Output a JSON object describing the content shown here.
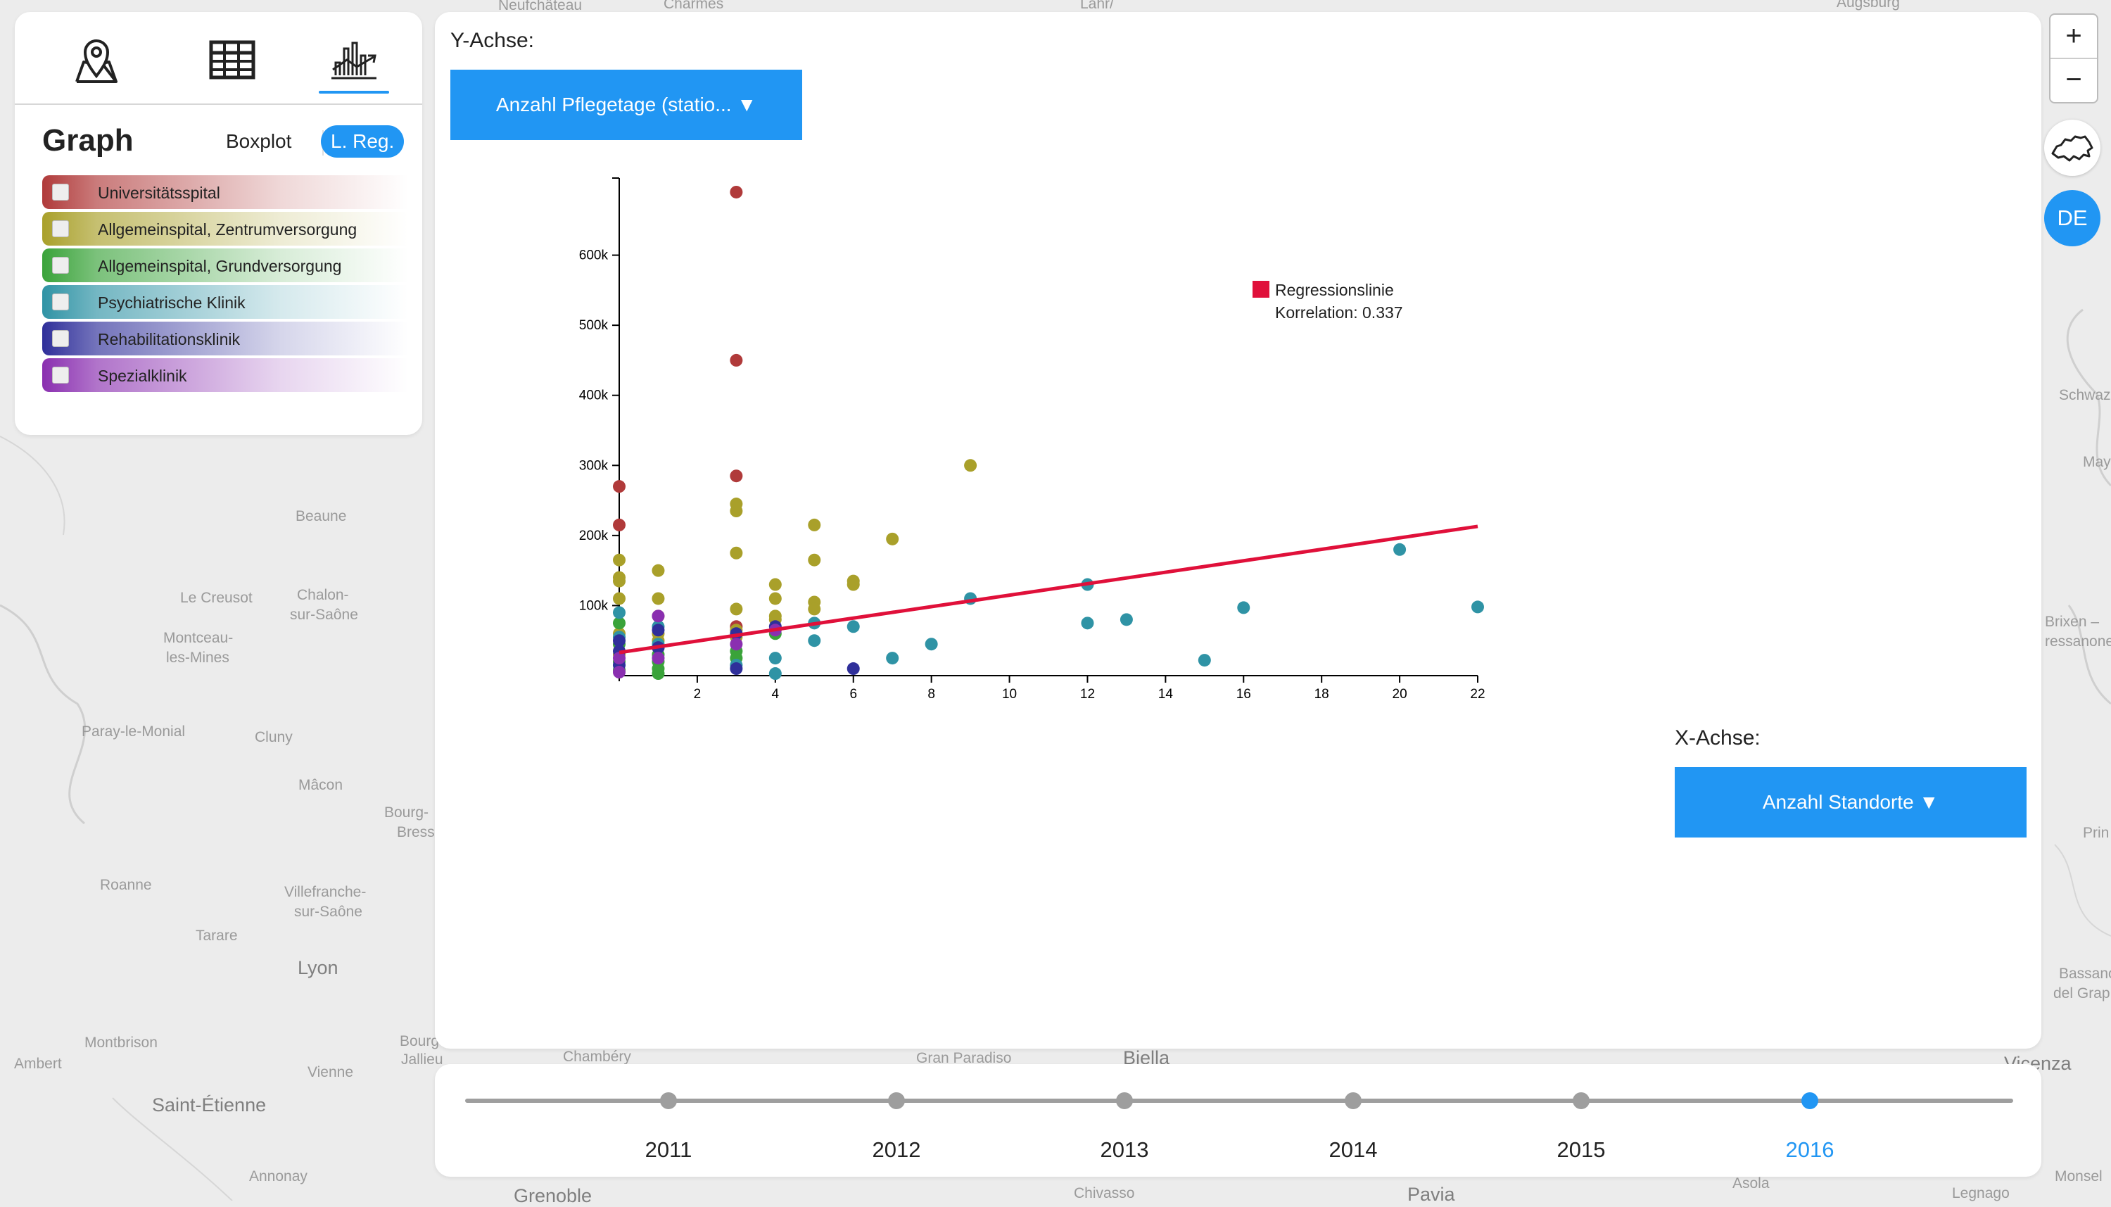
{
  "map": {
    "labels": [
      "Neufchâteau",
      "Charmes",
      "Lahr/",
      "Augsburg",
      "Beaune",
      "Le Creusot",
      "Chalon-",
      "sur-Saône",
      "Montceau-",
      "les-Mines",
      "Paray-le-Monial",
      "Cluny",
      "Mâcon",
      "Bourg-",
      "Bress",
      "Roanne",
      "Villefranche-",
      "sur-Saône",
      "Tarare",
      "Lyon",
      "Montbrison",
      "Vienne",
      "Ambert",
      "Saint-Étienne",
      "Annonay",
      "Bourg",
      "Jallieu",
      "Chambéry",
      "Gran Paradiso",
      "Biella",
      "Vicenza",
      "Chivasso",
      "Asola",
      "Legnago",
      "Pavia",
      "Grenoble",
      "Schwaz",
      "Brixen –",
      "ressanone",
      "Bassano",
      "del Grap",
      "Monsel",
      "Prin",
      "May"
    ]
  },
  "left_panel": {
    "tabs": [
      {
        "icon": "map-pin-icon"
      },
      {
        "icon": "table-icon"
      },
      {
        "icon": "chart-icon",
        "active": true
      }
    ],
    "title": "Graph",
    "mode_boxplot": "Boxplot",
    "mode_lreg": "L. Reg.",
    "legend": [
      {
        "label": "Universitätsspital",
        "color": "#b03a3a"
      },
      {
        "label": "Allgemeinspital, Zentrumversorgung",
        "color": "#a9a02a"
      },
      {
        "label": "Allgemeinspital, Grundversorgung",
        "color": "#3aa33a"
      },
      {
        "label": "Psychiatrische Klinik",
        "color": "#2f93a5"
      },
      {
        "label": "Rehabilitationsklinik",
        "color": "#2f2f9a"
      },
      {
        "label": "Spezialklinik",
        "color": "#8a2fb0"
      }
    ]
  },
  "main_panel": {
    "y_caption": "Y-Achse:",
    "y_button": "Anzahl Pflegetage (statio... ▼",
    "x_caption": "X-Achse:",
    "x_button": "Anzahl Standorte ▼"
  },
  "chart_data": {
    "type": "scatter",
    "xlim": [
      0,
      22
    ],
    "ylim": [
      0,
      700000
    ],
    "x_ticks": [
      2,
      4,
      6,
      8,
      10,
      12,
      14,
      16,
      18,
      20,
      22
    ],
    "y_ticks": [
      100000,
      200000,
      300000,
      400000,
      500000,
      600000
    ],
    "y_tick_labels": [
      "100k",
      "200k",
      "300k",
      "400k",
      "500k",
      "600k"
    ],
    "legend_label": "Regressionslinie",
    "correlation_text": "Korrelation: 0.337",
    "regression_color": "#e0103a",
    "regression": {
      "x": [
        0,
        22
      ],
      "y": [
        33000,
        213000
      ]
    },
    "series": [
      {
        "color": "#b03a3a",
        "points": [
          [
            0,
            270000
          ],
          [
            0,
            215000
          ],
          [
            3,
            690000
          ],
          [
            3,
            450000
          ],
          [
            3,
            285000
          ],
          [
            3,
            70000
          ]
        ]
      },
      {
        "color": "#a9a02a",
        "points": [
          [
            0,
            165000
          ],
          [
            0,
            140000
          ],
          [
            0,
            135000
          ],
          [
            0,
            110000
          ],
          [
            0,
            60000
          ],
          [
            0,
            30000
          ],
          [
            1,
            150000
          ],
          [
            1,
            110000
          ],
          [
            1,
            85000
          ],
          [
            1,
            60000
          ],
          [
            1,
            50000
          ],
          [
            3,
            245000
          ],
          [
            3,
            235000
          ],
          [
            3,
            175000
          ],
          [
            3,
            95000
          ],
          [
            3,
            65000
          ],
          [
            3,
            55000
          ],
          [
            4,
            130000
          ],
          [
            4,
            110000
          ],
          [
            4,
            85000
          ],
          [
            4,
            80000
          ],
          [
            5,
            215000
          ],
          [
            5,
            165000
          ],
          [
            5,
            105000
          ],
          [
            5,
            95000
          ],
          [
            6,
            135000
          ],
          [
            6,
            130000
          ],
          [
            7,
            195000
          ],
          [
            9,
            300000
          ]
        ]
      },
      {
        "color": "#3aa33a",
        "points": [
          [
            0,
            75000
          ],
          [
            0,
            45000
          ],
          [
            0,
            20000
          ],
          [
            0,
            8000
          ],
          [
            1,
            40000
          ],
          [
            1,
            30000
          ],
          [
            1,
            20000
          ],
          [
            1,
            10000
          ],
          [
            1,
            3000
          ],
          [
            3,
            35000
          ],
          [
            3,
            25000
          ],
          [
            4,
            60000
          ]
        ]
      },
      {
        "color": "#2f93a5",
        "points": [
          [
            0,
            90000
          ],
          [
            0,
            55000
          ],
          [
            1,
            70000
          ],
          [
            1,
            45000
          ],
          [
            3,
            15000
          ],
          [
            4,
            25000
          ],
          [
            4,
            3000
          ],
          [
            5,
            75000
          ],
          [
            5,
            50000
          ],
          [
            6,
            70000
          ],
          [
            7,
            25000
          ],
          [
            8,
            45000
          ],
          [
            9,
            110000
          ],
          [
            12,
            130000
          ],
          [
            12,
            75000
          ],
          [
            13,
            80000
          ],
          [
            15,
            22000
          ],
          [
            16,
            97000
          ],
          [
            20,
            180000
          ],
          [
            22,
            98000
          ]
        ]
      },
      {
        "color": "#2f2f9a",
        "points": [
          [
            0,
            50000
          ],
          [
            0,
            35000
          ],
          [
            0,
            15000
          ],
          [
            1,
            65000
          ],
          [
            1,
            40000
          ],
          [
            3,
            60000
          ],
          [
            3,
            10000
          ],
          [
            4,
            70000
          ],
          [
            6,
            10000
          ]
        ]
      },
      {
        "color": "#8a2fb0",
        "points": [
          [
            0,
            25000
          ],
          [
            0,
            5000
          ],
          [
            1,
            85000
          ],
          [
            1,
            25000
          ],
          [
            3,
            45000
          ],
          [
            4,
            65000
          ]
        ]
      }
    ]
  },
  "timeline": {
    "years": [
      "2011",
      "2012",
      "2013",
      "2014",
      "2015",
      "2016"
    ],
    "active": "2016"
  },
  "controls": {
    "zoom_in": "+",
    "zoom_out": "−",
    "language": "DE"
  }
}
